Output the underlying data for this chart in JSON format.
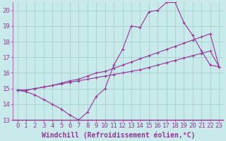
{
  "background_color": "#c8eaea",
  "grid_color": "#aad4d4",
  "line_color": "#993399",
  "xlabel": "Windchill (Refroidissement éolien,°C)",
  "xlim": [
    -0.5,
    23.5
  ],
  "ylim": [
    13,
    20.5
  ],
  "xticks": [
    0,
    1,
    2,
    3,
    4,
    5,
    6,
    7,
    8,
    9,
    10,
    11,
    12,
    13,
    14,
    15,
    16,
    17,
    18,
    19,
    20,
    21,
    22,
    23
  ],
  "yticks": [
    13,
    14,
    15,
    16,
    17,
    18,
    19,
    20
  ],
  "series1_x": [
    0,
    1,
    2,
    3,
    4,
    5,
    6,
    7,
    8,
    9,
    10,
    11,
    12,
    13,
    14,
    15,
    16,
    17,
    18,
    19,
    20,
    21,
    22,
    23
  ],
  "series1_y": [
    14.9,
    14.8,
    14.6,
    14.3,
    14.0,
    13.7,
    13.3,
    13.0,
    13.5,
    14.5,
    15.0,
    16.5,
    17.5,
    19.0,
    18.9,
    19.9,
    20.0,
    20.5,
    20.5,
    19.2,
    18.4,
    17.4,
    16.5,
    16.4
  ],
  "series2_x": [
    0,
    1,
    2,
    3,
    4,
    5,
    6,
    7,
    8,
    9,
    10,
    11,
    12,
    13,
    14,
    15,
    16,
    17,
    18,
    19,
    20,
    21,
    22,
    23
  ],
  "series2_y": [
    14.9,
    14.9,
    15.0,
    15.1,
    15.2,
    15.3,
    15.4,
    15.5,
    15.6,
    15.7,
    15.8,
    15.9,
    16.0,
    16.1,
    16.2,
    16.35,
    16.5,
    16.65,
    16.8,
    16.95,
    17.1,
    17.25,
    17.4,
    16.4
  ],
  "series3_x": [
    0,
    1,
    2,
    3,
    4,
    5,
    6,
    7,
    8,
    9,
    10,
    11,
    12,
    13,
    14,
    15,
    16,
    17,
    18,
    19,
    20,
    21,
    22,
    23
  ],
  "series3_y": [
    14.9,
    14.9,
    15.0,
    15.1,
    15.2,
    15.35,
    15.5,
    15.6,
    15.8,
    16.0,
    16.1,
    16.3,
    16.5,
    16.7,
    16.9,
    17.1,
    17.3,
    17.5,
    17.7,
    17.9,
    18.1,
    18.3,
    18.5,
    16.4
  ],
  "tick_fontsize": 6.5,
  "xlabel_fontsize": 7
}
